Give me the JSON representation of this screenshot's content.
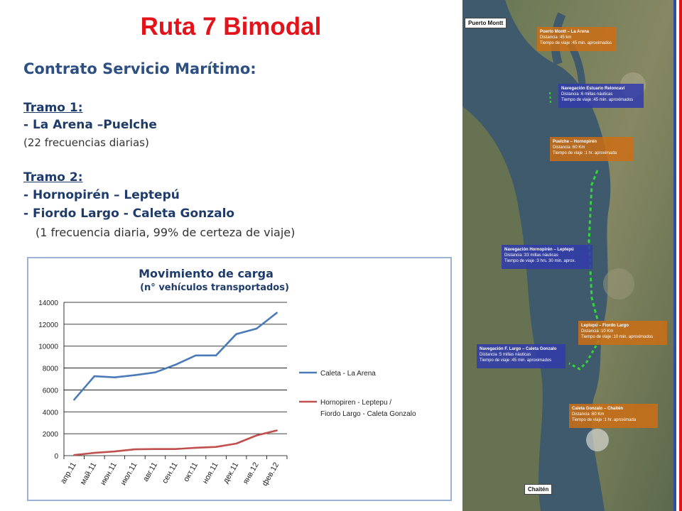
{
  "title": "Ruta 7 Bimodal",
  "subtitle": "Contrato Servicio Marítimo:",
  "tramo1": {
    "heading": "Tramo 1:",
    "route": "- La Arena –Puelche",
    "note": "(22 frecuencias diarias)"
  },
  "tramo2": {
    "heading": "Tramo 2:",
    "route1": "- Hornopirén – Leptepú",
    "route2": "- Fiordo Largo - Caleta Gonzalo",
    "note": "(1 frecuencia diaria, 99% de certeza de viaje)"
  },
  "chart_data": {
    "type": "line",
    "title": "Movimiento de carga",
    "subtitle": "(n° vehículos transportados)",
    "categories": [
      "апр.11",
      "май.11",
      "июн.11",
      "июл.11",
      "авг.11",
      "сен.11",
      "окт.11",
      "ноя.11",
      "дек.11",
      "янв.12",
      "фев.12"
    ],
    "ylim": [
      0,
      14000
    ],
    "yticks": [
      "0",
      "2000",
      "4000",
      "6000",
      "8000",
      "10000",
      "12000",
      "14000"
    ],
    "grid": true,
    "legend_position": "right",
    "series": [
      {
        "name": "Caleta - La Arena",
        "color": "#4a7ab8",
        "values": [
          5100,
          7250,
          7150,
          7350,
          7600,
          8300,
          9150,
          9150,
          11100,
          11600,
          13050
        ]
      },
      {
        "name": "Hornopiren - Leptepu / Fiordo Largo - Caleta Gonzalo",
        "name_line1": "Hornopiren - Leptepu /",
        "name_line2": "Fiordo Largo - Caleta Gonzalo",
        "color": "#c0504d",
        "values": [
          50,
          250,
          380,
          580,
          600,
          600,
          720,
          800,
          1100,
          1850,
          2300
        ]
      }
    ]
  },
  "map": {
    "label_top": "Puerto Montt",
    "label_bottom": "Chaitén",
    "boxes": [
      {
        "title": "Puerto Montt – La Arena",
        "l1": "Distancia :45 km",
        "l2": "Tiempo de viaje :45 min. aproximados",
        "color": "orange"
      },
      {
        "title": "Navegación Estuario Reloncaví",
        "l1": "Distancia :6 millas náuticas",
        "l2": "Tiempo de viaje :45 min. aproximados",
        "color": "blue"
      },
      {
        "title": "Puelche – Hornopirén",
        "l1": "Distancia :60 Km",
        "l2": "Tiempo de viaje :1 hr. aproximada",
        "color": "orange"
      },
      {
        "title": "Navegación Hornopirén – Leptepú",
        "l1": "Distancia :33 millas náuticas",
        "l2": "Tiempo de viaje :3 hrs. 30 min. aprox.",
        "color": "blue"
      },
      {
        "title": "Leptepú – Fiordo Largo",
        "l1": "Distancia :10 Km",
        "l2": "Tiempo de viaje :10 min. aproximados",
        "color": "orange"
      },
      {
        "title": "Navegación F. Largo – Caleta Gonzalo",
        "l1": "Distancia :5 millas náuticas",
        "l2": "Tiempo de viaje :45 min. aproximados",
        "color": "blue"
      },
      {
        "title": "Caleta Gonzalo – Chaitén",
        "l1": "Distancia :60 Km",
        "l2": "Tiempo de viaje :1 hr. aproximada",
        "color": "orange"
      }
    ]
  }
}
